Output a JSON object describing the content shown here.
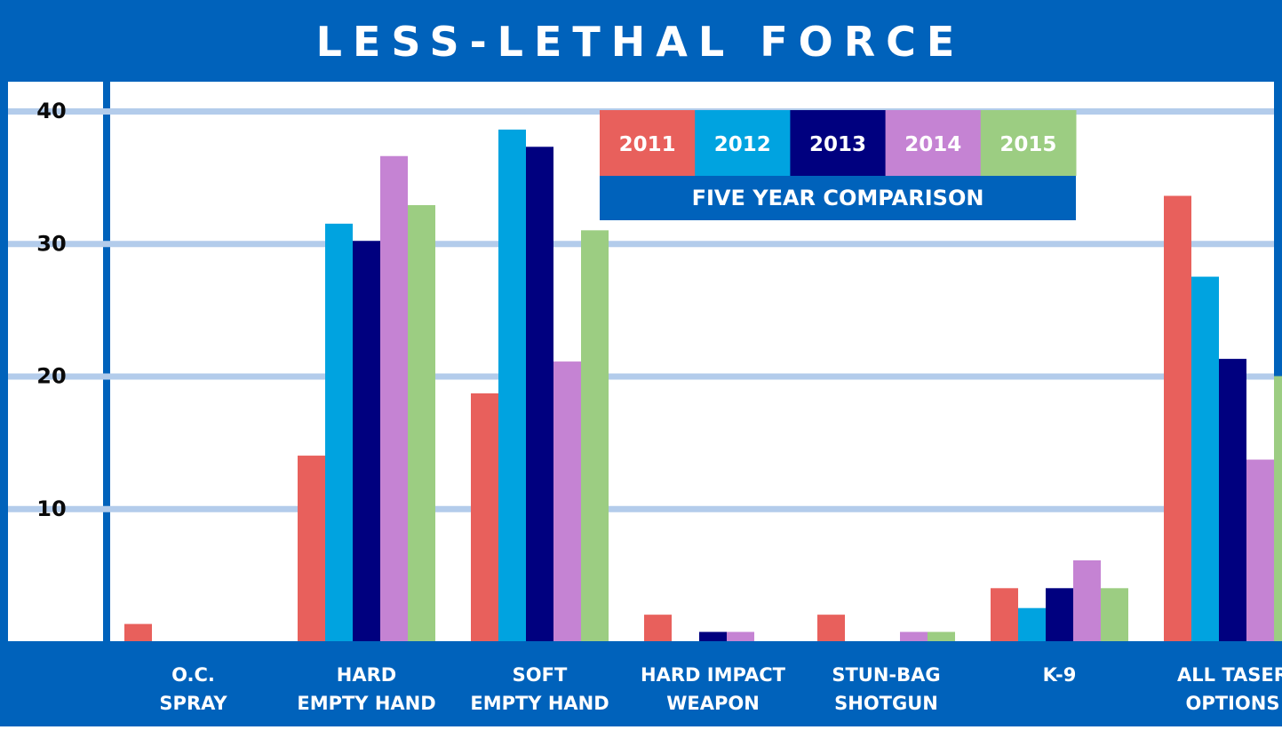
{
  "chart_data": {
    "type": "bar",
    "title": "LESS-LETHAL FORCE",
    "legend_title": "FIVE YEAR COMPARISON",
    "legend_placement": "top-center",
    "categories": [
      [
        "O.C.",
        "SPRAY"
      ],
      [
        "HARD",
        "EMPTY HAND"
      ],
      [
        "SOFT",
        "EMPTY HAND"
      ],
      [
        "HARD IMPACT",
        "WEAPON"
      ],
      [
        "STUN-BAG",
        "SHOTGUN"
      ],
      [
        "K-9"
      ],
      [
        "ALL TASER",
        "OPTIONS"
      ]
    ],
    "series": [
      {
        "name": "2011",
        "color": "#e8605c",
        "values": [
          1.3,
          14,
          18.7,
          2,
          2,
          4,
          33.6
        ]
      },
      {
        "name": "2012",
        "color": "#00a3e0",
        "values": [
          0,
          31.5,
          38.6,
          0,
          0,
          2.5,
          27.5
        ]
      },
      {
        "name": "2013",
        "color": "#00007f",
        "values": [
          0,
          30.2,
          37.3,
          0.7,
          0,
          4,
          21.3
        ]
      },
      {
        "name": "2014",
        "color": "#c583d3",
        "values": [
          0,
          36.6,
          21.1,
          0.7,
          0.7,
          6.1,
          13.7
        ]
      },
      {
        "name": "2015",
        "color": "#9ccd82",
        "values": [
          0,
          32.9,
          31,
          0,
          0.7,
          4,
          20
        ]
      }
    ],
    "yticks": [
      10,
      20,
      30,
      40
    ],
    "ylim": [
      0,
      40
    ],
    "grid": true,
    "colors": {
      "frame": "#0062bb",
      "gridline": "#b3cceb",
      "legend_text_2013": "#ffffff",
      "text": "#ffffff",
      "axis_text": "#0a0a0a"
    }
  }
}
